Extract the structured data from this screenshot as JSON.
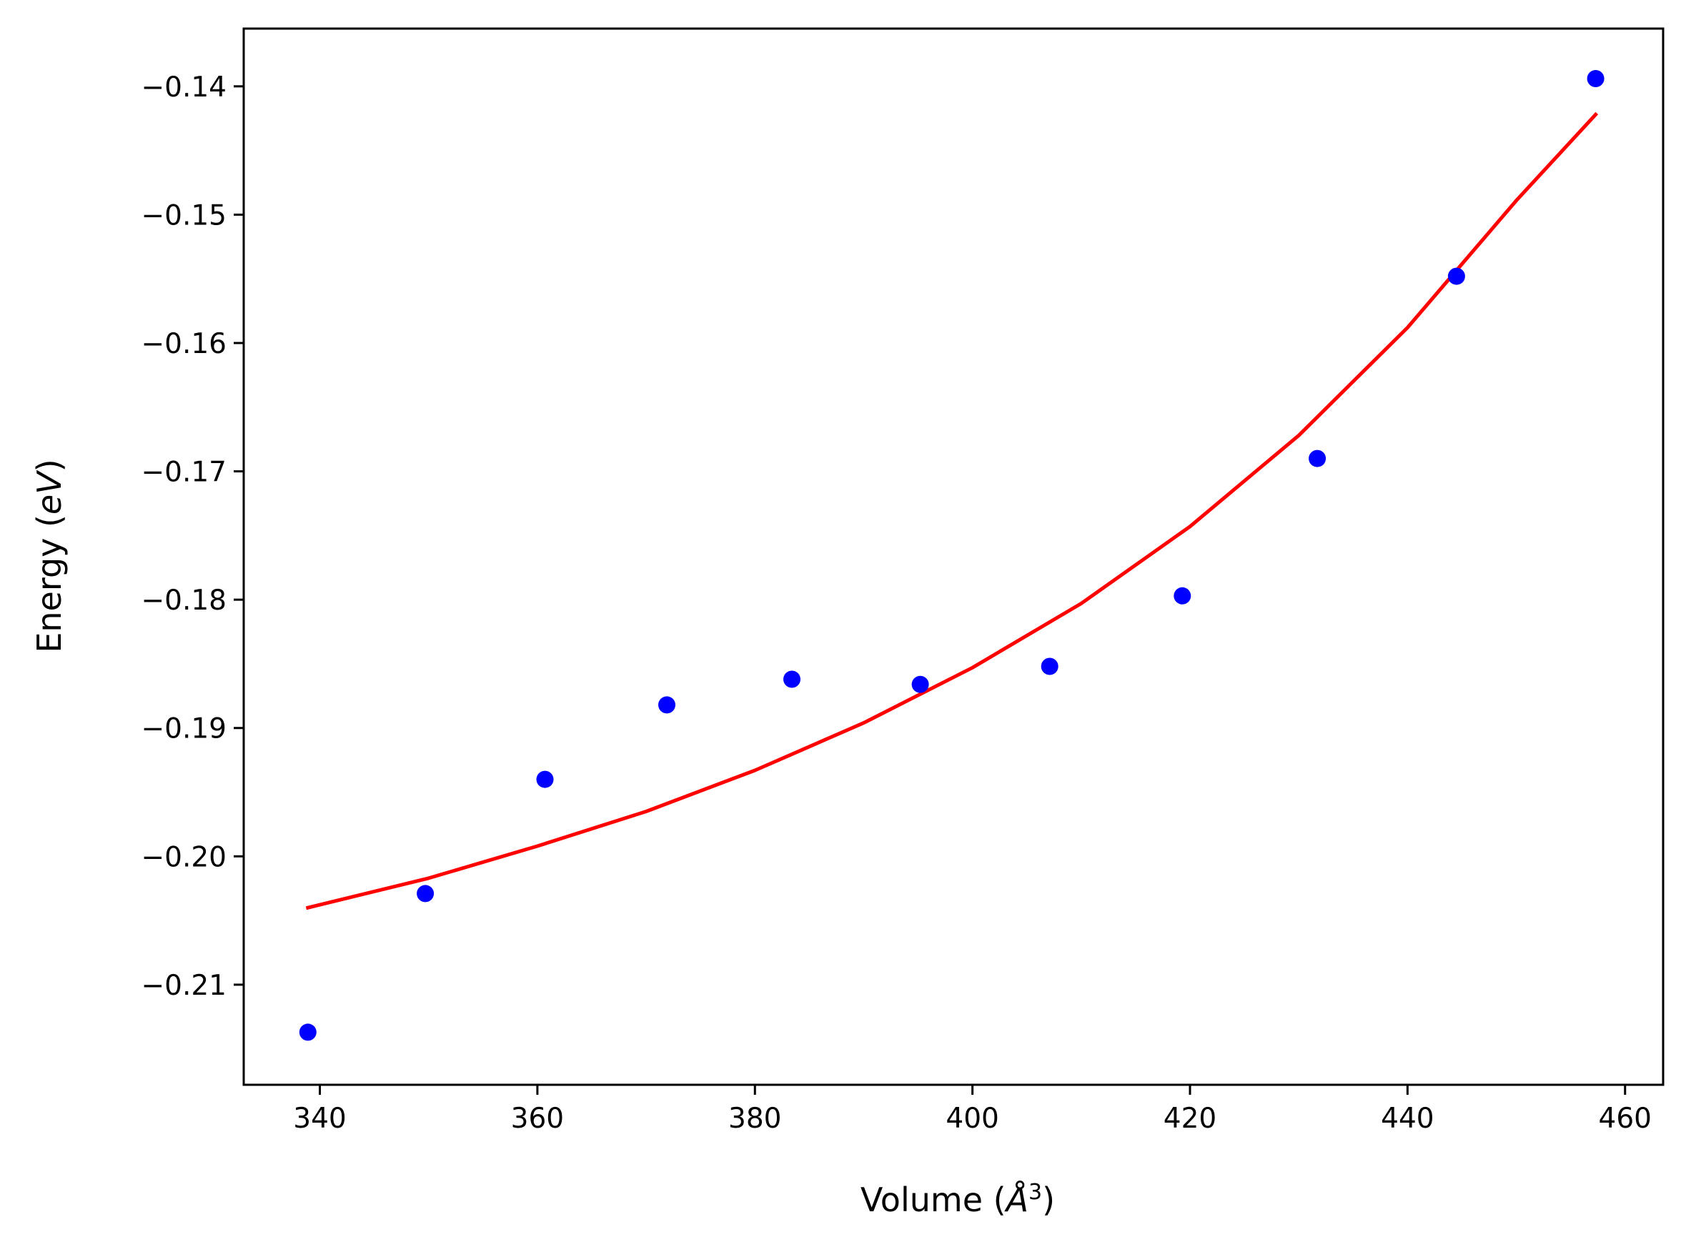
{
  "chart_data": {
    "type": "scatter",
    "title": "",
    "xlabel": "Volume",
    "xlabel_unit": "Å",
    "xlabel_unit_exp": "3",
    "ylabel": "Energy",
    "ylabel_unit": "eV",
    "xlim": [
      333,
      463.5
    ],
    "ylim": [
      -0.2178,
      -0.1355
    ],
    "xticks": [
      340,
      360,
      380,
      400,
      420,
      440,
      460
    ],
    "xtick_labels": [
      "340",
      "360",
      "380",
      "400",
      "420",
      "440",
      "460"
    ],
    "yticks": [
      -0.14,
      -0.15,
      -0.16,
      -0.17,
      -0.18,
      -0.19,
      -0.2,
      -0.21
    ],
    "ytick_labels": [
      "−0.14",
      "−0.15",
      "−0.16",
      "−0.17",
      "−0.18",
      "−0.19",
      "−0.20",
      "−0.21"
    ],
    "grid": false,
    "series": [
      {
        "kind": "scatter",
        "color": "#0000ff",
        "x": [
          338.9,
          349.7,
          360.7,
          371.9,
          383.4,
          395.2,
          407.1,
          419.3,
          431.7,
          444.5,
          457.3
        ],
        "y": [
          -0.2137,
          -0.2029,
          -0.194,
          -0.1882,
          -0.1862,
          -0.1866,
          -0.1852,
          -0.1797,
          -0.169,
          -0.1548,
          -0.1394
        ]
      },
      {
        "kind": "line",
        "color": "#ff0000",
        "x": [
          338.9,
          350,
          360,
          370,
          380,
          390,
          400,
          410,
          420,
          430,
          440,
          450,
          457.3
        ],
        "y": [
          -0.204,
          -0.2017,
          -0.1992,
          -0.1965,
          -0.1933,
          -0.1896,
          -0.1853,
          -0.1803,
          -0.1743,
          -0.1672,
          -0.1588,
          -0.1489,
          -0.1422
        ]
      }
    ]
  }
}
